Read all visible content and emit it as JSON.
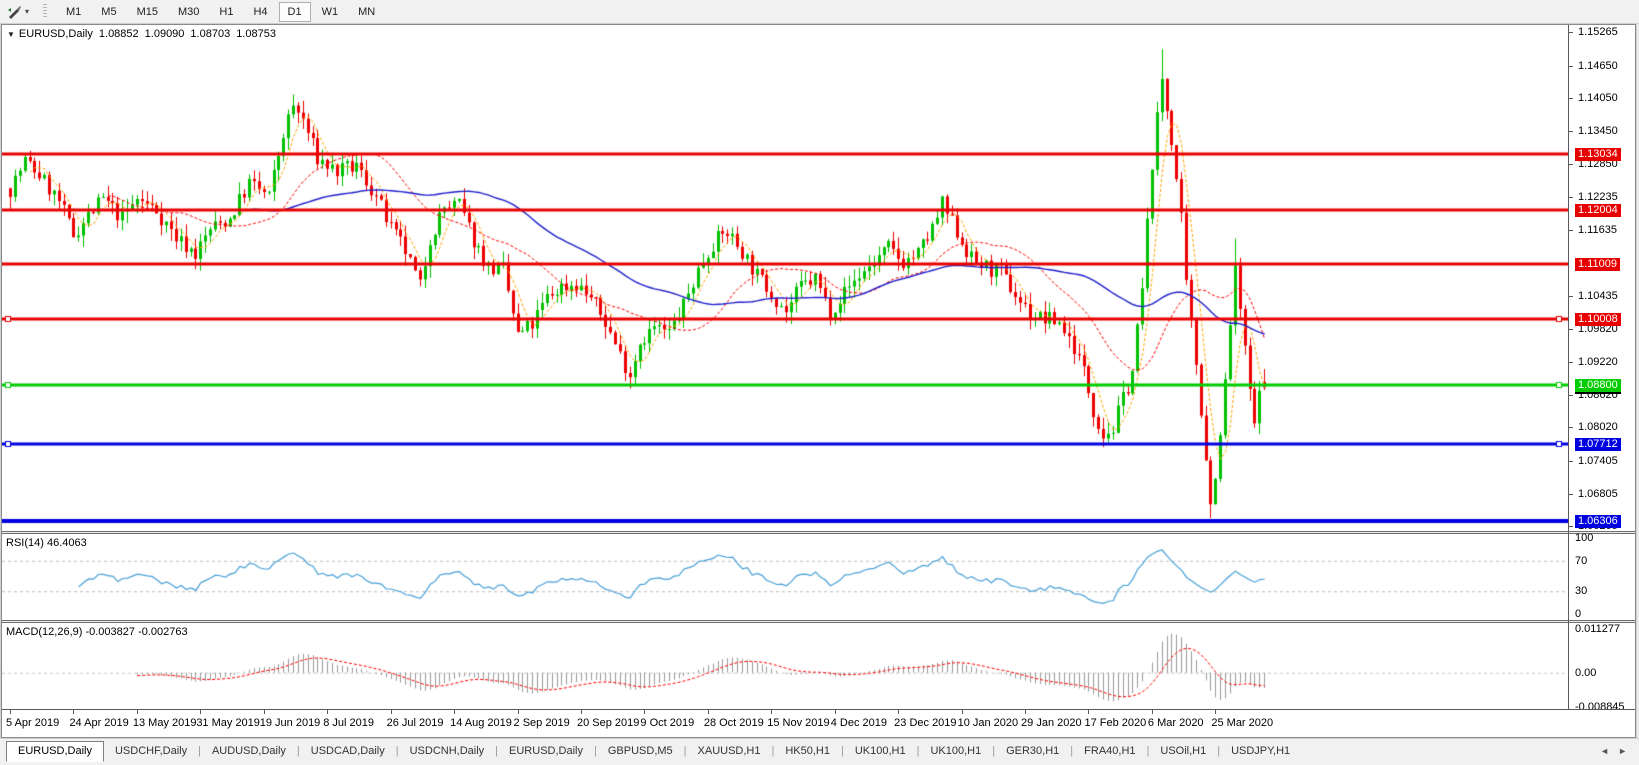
{
  "toolbar": {
    "timeframes": [
      {
        "label": "M1",
        "active": false
      },
      {
        "label": "M5",
        "active": false
      },
      {
        "label": "M15",
        "active": false
      },
      {
        "label": "M30",
        "active": false
      },
      {
        "label": "H1",
        "active": false
      },
      {
        "label": "H4",
        "active": false
      },
      {
        "label": "D1",
        "active": true
      },
      {
        "label": "W1",
        "active": false
      },
      {
        "label": "MN",
        "active": false
      }
    ],
    "icons": {
      "pen_tool": "✎",
      "dropdown": "▾"
    }
  },
  "chart": {
    "title": {
      "collapse": "▼",
      "symbol": "EURUSD,Daily",
      "o": "1.08852",
      "h": "1.09090",
      "l": "1.08703",
      "c": "1.08753"
    }
  },
  "indicators": {
    "rsi": {
      "label": "RSI(14) 46.4063",
      "period": 14,
      "value": 46.4063,
      "color": "#4aa0d8",
      "scale": [
        {
          "label": "100",
          "value": 100
        },
        {
          "label": "70",
          "value": 70
        },
        {
          "label": "30",
          "value": 30
        },
        {
          "label": "0",
          "value": 0
        }
      ],
      "levels": [
        70,
        30
      ]
    },
    "macd": {
      "label": "MACD(12,26,9) -0.003827 -0.002763",
      "fast": 12,
      "slow": 26,
      "signal_period": 9,
      "main_value": -0.003827,
      "signal_value": -0.002763,
      "histogram_color": "#9a9a9a",
      "signal_color": "#ff0000",
      "scale": [
        {
          "label": "0.011277",
          "value": 0.011277
        },
        {
          "label": "0.00",
          "value": 0
        },
        {
          "label": "-0.008845",
          "value": -0.008845
        }
      ],
      "range": {
        "max": 0.011277,
        "min": -0.008845
      }
    }
  },
  "price_axis": {
    "ticks": [
      "1.15265",
      "1.14650",
      "1.14050",
      "1.13450",
      "1.12850",
      "1.12235",
      "1.11635",
      "1.10435",
      "1.09820",
      "1.09220",
      "1.08620",
      "1.08020",
      "1.07405",
      "1.06805",
      "1.06205"
    ],
    "current_price_label": {
      "label": "1.08753",
      "value": 1.08753,
      "bg": "#000000"
    }
  },
  "time_axis": {
    "labels": [
      "5 Apr 2019",
      "24 Apr 2019",
      "13 May 2019",
      "31 May 2019",
      "19 Jun 2019",
      "8 Jul 2019",
      "26 Jul 2019",
      "14 Aug 2019",
      "2 Sep 2019",
      "20 Sep 2019",
      "9 Oct 2019",
      "28 Oct 2019",
      "15 Nov 2019",
      "4 Dec 2019",
      "23 Dec 2019",
      "10 Jan 2020",
      "29 Jan 2020",
      "17 Feb 2020",
      "6 Mar 2020",
      "25 Mar 2020"
    ],
    "bars_per_label": 13
  },
  "tabs": {
    "items": [
      {
        "label": "EURUSD,Daily",
        "active": true
      },
      {
        "label": "USDCHF,Daily",
        "active": false
      },
      {
        "label": "AUDUSD,Daily",
        "active": false
      },
      {
        "label": "USDCAD,Daily",
        "active": false
      },
      {
        "label": "USDCNH,Daily",
        "active": false
      },
      {
        "label": "EURUSD,Daily",
        "active": false
      },
      {
        "label": "GBPUSD,M5",
        "active": false
      },
      {
        "label": "XAUUSD,H1",
        "active": false
      },
      {
        "label": "HK50,H1",
        "active": false
      },
      {
        "label": "UK100,H1",
        "active": false
      },
      {
        "label": "UK100,H1",
        "active": false
      },
      {
        "label": "GER30,H1",
        "active": false
      },
      {
        "label": "FRA40,H1",
        "active": false
      },
      {
        "label": "USOil,H1",
        "active": false
      },
      {
        "label": "USDJPY,H1",
        "active": false
      }
    ],
    "nav_icons": {
      "left": "◄",
      "right": "►"
    }
  },
  "chart_data": {
    "type": "candlestick",
    "symbol": "EURUSD",
    "timeframe": "Daily",
    "bars": 258,
    "seed": 7,
    "visible_price_range": {
      "top": 1.15393,
      "bottom": 1.06122
    },
    "candle_colors": {
      "up": "#00c000",
      "down": "#ee0000"
    },
    "price_path_anchors": [
      [
        0,
        1.124
      ],
      [
        3,
        1.129
      ],
      [
        6,
        1.1265
      ],
      [
        10,
        1.1215
      ],
      [
        13,
        1.1155
      ],
      [
        16,
        1.119
      ],
      [
        19,
        1.122
      ],
      [
        23,
        1.1185
      ],
      [
        26,
        1.122
      ],
      [
        30,
        1.12
      ],
      [
        34,
        1.115
      ],
      [
        38,
        1.112
      ],
      [
        41,
        1.1165
      ],
      [
        45,
        1.1185
      ],
      [
        49,
        1.125
      ],
      [
        53,
        1.1225
      ],
      [
        56,
        1.134
      ],
      [
        58,
        1.139
      ],
      [
        60,
        1.1365
      ],
      [
        63,
        1.1295
      ],
      [
        67,
        1.127
      ],
      [
        71,
        1.128
      ],
      [
        75,
        1.1225
      ],
      [
        78,
        1.1165
      ],
      [
        81,
        1.1125
      ],
      [
        84,
        1.106
      ],
      [
        86,
        1.115
      ],
      [
        89,
        1.1205
      ],
      [
        92,
        1.121
      ],
      [
        95,
        1.1145
      ],
      [
        98,
        1.1095
      ],
      [
        101,
        1.109
      ],
      [
        104,
        1.097
      ],
      [
        107,
        1.099
      ],
      [
        110,
        1.104
      ],
      [
        113,
        1.106
      ],
      [
        116,
        1.1065
      ],
      [
        119,
        1.104
      ],
      [
        122,
        1.0995
      ],
      [
        125,
        1.0935
      ],
      [
        127,
        1.09
      ],
      [
        129,
        1.096
      ],
      [
        132,
        1.0985
      ],
      [
        135,
        1.0975
      ],
      [
        138,
        1.1025
      ],
      [
        141,
        1.109
      ],
      [
        144,
        1.114
      ],
      [
        147,
        1.116
      ],
      [
        150,
        1.1125
      ],
      [
        153,
        1.108
      ],
      [
        156,
        1.105
      ],
      [
        159,
        1.1015
      ],
      [
        162,
        1.106
      ],
      [
        165,
        1.1075
      ],
      [
        168,
        1.1015
      ],
      [
        171,
        1.105
      ],
      [
        174,
        1.108
      ],
      [
        177,
        1.1105
      ],
      [
        180,
        1.113
      ],
      [
        183,
        1.1105
      ],
      [
        186,
        1.112
      ],
      [
        189,
        1.1165
      ],
      [
        191,
        1.121
      ],
      [
        194,
        1.116
      ],
      [
        197,
        1.111
      ],
      [
        200,
        1.1095
      ],
      [
        203,
        1.1085
      ],
      [
        206,
        1.1045
      ],
      [
        209,
        1.101
      ],
      [
        212,
        1.1
      ],
      [
        215,
        1.0995
      ],
      [
        218,
        1.095
      ],
      [
        220,
        1.0905
      ],
      [
        222,
        1.0835
      ],
      [
        224,
        1.079
      ],
      [
        226,
        1.08
      ],
      [
        228,
        1.0855
      ],
      [
        230,
        1.0905
      ],
      [
        232,
        1.1055
      ],
      [
        234,
        1.129
      ],
      [
        236,
        1.144
      ],
      [
        238,
        1.133
      ],
      [
        240,
        1.118
      ],
      [
        241,
        1.106
      ],
      [
        243,
        1.092
      ],
      [
        245,
        1.075
      ],
      [
        246,
        1.066
      ],
      [
        248,
        1.078
      ],
      [
        250,
        1.099
      ],
      [
        251,
        1.1085
      ],
      [
        252,
        1.102
      ],
      [
        253,
        1.094
      ],
      [
        254,
        1.087
      ],
      [
        255,
        1.08
      ],
      [
        256,
        1.0885
      ],
      [
        257,
        1.08753
      ]
    ],
    "extremes": [
      {
        "bar": 58,
        "high": 1.1412
      },
      {
        "bar": 127,
        "low": 1.0879
      },
      {
        "bar": 224,
        "low": 1.0772
      },
      {
        "bar": 236,
        "high": 1.1495
      },
      {
        "bar": 246,
        "low": 1.0636
      },
      {
        "bar": 251,
        "high": 1.1148
      }
    ],
    "last_candle": {
      "open": 1.08852,
      "high": 1.0909,
      "low": 1.08703,
      "close": 1.08753
    },
    "moving_averages": [
      {
        "period": 5,
        "color": "#ffa500",
        "style": "dashed"
      },
      {
        "period": 21,
        "color": "#ff0000",
        "style": "dashed"
      },
      {
        "period": 50,
        "color": "#2020cc",
        "style": "solid"
      }
    ],
    "horizontal_levels": [
      {
        "label": "1.13034",
        "price": 1.13034,
        "color": "#e80000",
        "width": 3,
        "handles": false
      },
      {
        "label": "1.12004",
        "price": 1.12004,
        "color": "#e80000",
        "width": 3,
        "handles": false
      },
      {
        "label": "1.11009",
        "price": 1.11009,
        "color": "#e80000",
        "width": 3,
        "handles": false
      },
      {
        "label": "1.10008",
        "price": 1.10008,
        "color": "#e80000",
        "width": 3,
        "handles": true
      },
      {
        "label": "1.08800",
        "price": 1.088,
        "color": "#00cc00",
        "width": 3,
        "handles": true
      },
      {
        "label": "1.07712",
        "price": 1.07712,
        "color": "#0000e0",
        "width": 3,
        "handles": true
      },
      {
        "label": "1.06306",
        "price": 1.06306,
        "color": "#0000e0",
        "width": 4,
        "handles": false
      }
    ]
  }
}
